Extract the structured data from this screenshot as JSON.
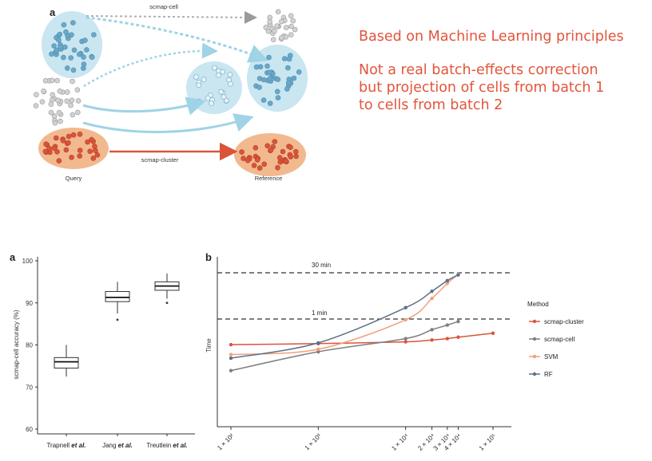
{
  "panel_top": {
    "label": "a",
    "arrow_cell_label": "scmap-cell",
    "arrow_cluster_label": "scmap-cluster",
    "query_label": "Query",
    "reference_label": "Reference"
  },
  "notes": {
    "line1": "Based on Machine Learning principles",
    "line2": [
      "Not a real batch-effects correction",
      "but projection of cells from batch 1",
      "to cells from batch 2"
    ]
  },
  "colors": {
    "accent_text": "#e2553b",
    "blue_cell": "#c9e6f1",
    "orange_cell": "#f2b98f",
    "scmap_cluster": "#d9553a",
    "scmap_cell": "#7f7f7f",
    "svm": "#f0a07a",
    "rf": "#5a7288"
  },
  "chart_data": [
    {
      "type": "box",
      "panel_label": "a",
      "ylabel": "scmap-cell accuracy (%)",
      "ylim": [
        60,
        100
      ],
      "yticks": [
        60,
        70,
        80,
        90,
        100
      ],
      "categories": [
        {
          "name": "Trapnell",
          "suffix": "et al."
        },
        {
          "name": "Jang",
          "suffix": "et al."
        },
        {
          "name": "Treutlein",
          "suffix": "et al."
        }
      ],
      "boxes": [
        {
          "min": 72.5,
          "q1": 74.5,
          "median": 76,
          "q3": 77,
          "max": 80,
          "outliers": []
        },
        {
          "min": 87.5,
          "q1": 90.3,
          "median": 91.3,
          "q3": 92.7,
          "max": 95,
          "outliers": [
            86
          ]
        },
        {
          "min": 91,
          "q1": 93,
          "median": 94,
          "q3": 95,
          "max": 97,
          "outliers": [
            90
          ]
        }
      ]
    },
    {
      "type": "line",
      "panel_label": "b",
      "ylabel": "Time",
      "xscale": "log",
      "xticks": [
        {
          "value": 100,
          "label": "1 × 10²"
        },
        {
          "value": 1000,
          "label": "1 × 10³"
        },
        {
          "value": 10000,
          "label": "1 × 10⁴"
        },
        {
          "value": 20000,
          "label": "2 × 10⁴"
        },
        {
          "value": 30000,
          "label": "3 × 10⁴"
        },
        {
          "value": 40000,
          "label": "4 × 10⁴"
        },
        {
          "value": 100000,
          "label": "1 × 10⁵"
        }
      ],
      "reference_lines": [
        {
          "label": "30 min"
        },
        {
          "label": "1 min"
        }
      ],
      "legend_title": "Method",
      "legend_position": "right",
      "series": [
        {
          "name": "scmap-cluster",
          "color": "#d9553a",
          "x": [
            100,
            1000,
            10000,
            20000,
            30000,
            40000,
            100000
          ],
          "y": [
            0.28,
            0.31,
            0.36,
            0.41,
            0.45,
            0.49,
            0.6
          ]
        },
        {
          "name": "scmap-cell",
          "color": "#7f7f7f",
          "x": [
            100,
            1000,
            10000,
            20000,
            30000,
            40000
          ],
          "y": [
            -0.45,
            0.08,
            0.45,
            0.7,
            0.83,
            0.93
          ]
        },
        {
          "name": "SVM",
          "color": "#f0a07a",
          "x": [
            100,
            1000,
            10000,
            20000,
            30000,
            40000
          ],
          "y": [
            0.0,
            0.15,
            0.98,
            1.58,
            2.0,
            2.26
          ]
        },
        {
          "name": "RF",
          "color": "#5a7288",
          "x": [
            100,
            1000,
            10000,
            20000,
            30000,
            40000
          ],
          "y": [
            -0.1,
            0.33,
            1.32,
            1.78,
            2.08,
            2.24
          ]
        }
      ]
    }
  ]
}
